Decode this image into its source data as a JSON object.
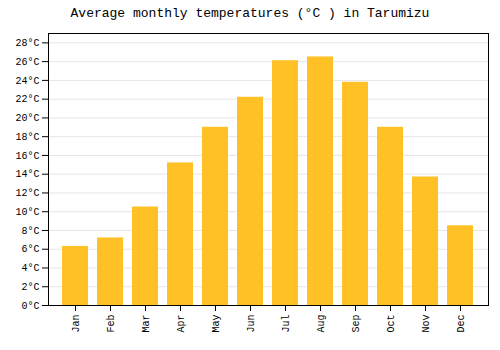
{
  "chart_data": {
    "type": "bar",
    "title": "Average monthly temperatures (°C ) in Tarumizu",
    "categories": [
      "Jan",
      "Feb",
      "Mar",
      "Apr",
      "May",
      "Jun",
      "Jul",
      "Aug",
      "Sep",
      "Oct",
      "Nov",
      "Dec"
    ],
    "values": [
      6.3,
      7.2,
      10.5,
      15.2,
      19.0,
      22.2,
      26.1,
      26.5,
      23.8,
      19.0,
      13.7,
      8.5
    ],
    "color": "#FFC125",
    "ylim": [
      0,
      29
    ],
    "yticks": [
      {
        "value": 0,
        "label": "0°C"
      },
      {
        "value": 2,
        "label": "2°C"
      },
      {
        "value": 4,
        "label": "4°C"
      },
      {
        "value": 6,
        "label": "6°C"
      },
      {
        "value": 8,
        "label": "8°C"
      },
      {
        "value": 10,
        "label": "10°C"
      },
      {
        "value": 12,
        "label": "12°C"
      },
      {
        "value": 14,
        "label": "14°C"
      },
      {
        "value": 16,
        "label": "16°C"
      },
      {
        "value": 18,
        "label": "18°C"
      },
      {
        "value": 20,
        "label": "20°C"
      },
      {
        "value": 22,
        "label": "22°C"
      },
      {
        "value": 24,
        "label": "24°C"
      },
      {
        "value": 26,
        "label": "26°C"
      },
      {
        "value": 28,
        "label": "28°C"
      }
    ],
    "grid": true
  }
}
